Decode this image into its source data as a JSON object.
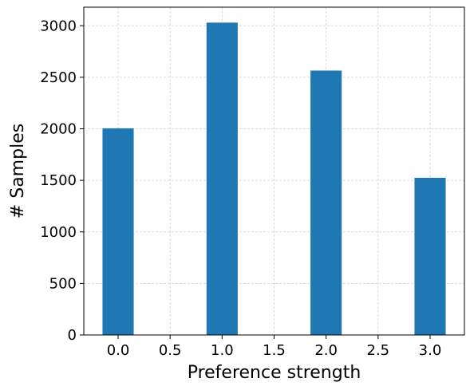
{
  "chart_data": {
    "type": "bar",
    "x": [
      0.0,
      1.0,
      2.0,
      3.0
    ],
    "values": [
      2005,
      3030,
      2565,
      1525
    ],
    "bar_width": 0.3,
    "xlabel": "Preference strength",
    "ylabel": "# Samples",
    "xlim": [
      -0.33,
      3.33
    ],
    "ylim": [
      0,
      3180
    ],
    "xticks": [
      0.0,
      0.5,
      1.0,
      1.5,
      2.0,
      2.5,
      3.0
    ],
    "xtick_labels": [
      "0.0",
      "0.5",
      "1.0",
      "1.5",
      "2.0",
      "2.5",
      "3.0"
    ],
    "yticks": [
      0,
      500,
      1000,
      1500,
      2000,
      2500,
      3000
    ],
    "ytick_labels": [
      "0",
      "500",
      "1000",
      "1500",
      "2000",
      "2500",
      "3000"
    ],
    "grid": true,
    "bar_color": "#1f77b4",
    "grid_color": "#d0d0d0"
  }
}
